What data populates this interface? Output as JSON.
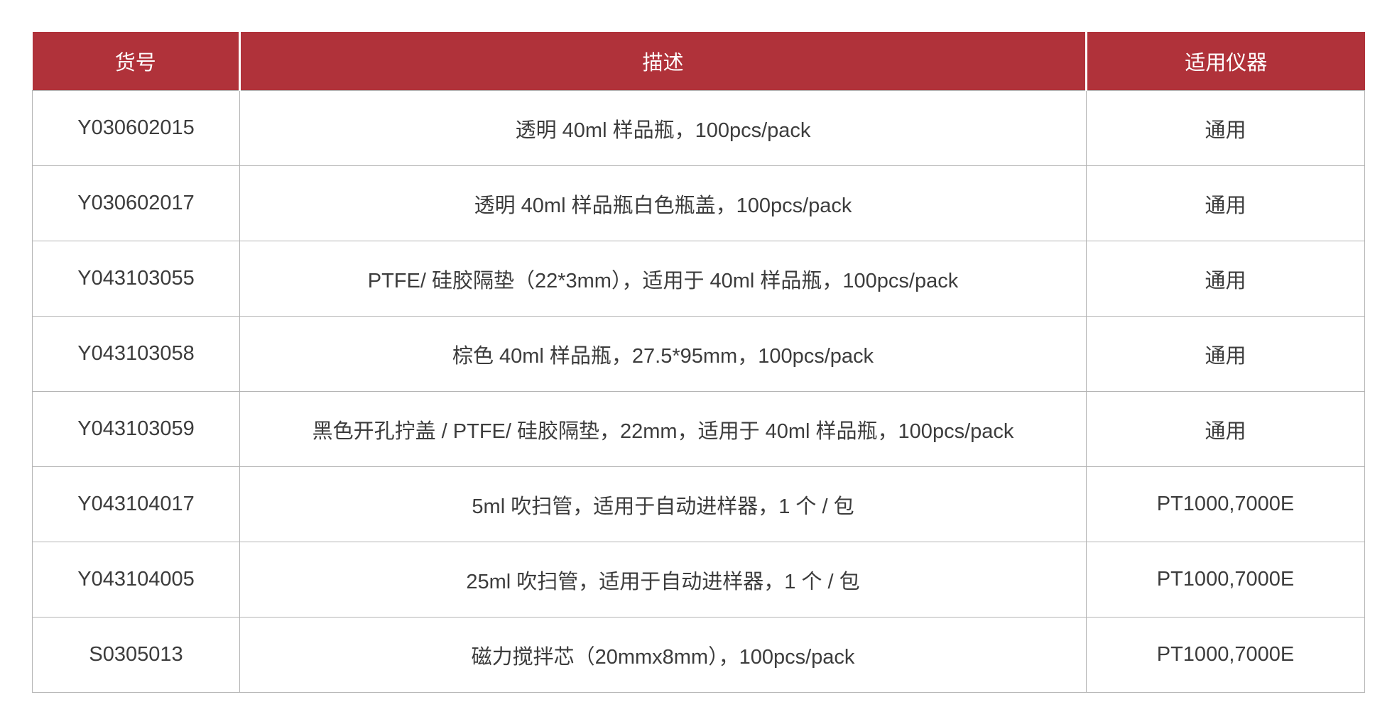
{
  "header_color": "#b0323a",
  "columns": [
    "货号",
    "描述",
    "适用仪器"
  ],
  "rows": [
    [
      "Y030602015",
      "透明 40ml 样品瓶，100pcs/pack",
      "通用"
    ],
    [
      "Y030602017",
      "透明 40ml 样品瓶白色瓶盖，100pcs/pack",
      "通用"
    ],
    [
      "Y043103055",
      "PTFE/ 硅胶隔垫（22*3mm），适用于 40ml 样品瓶，100pcs/pack",
      "通用"
    ],
    [
      "Y043103058",
      "棕色 40ml 样品瓶，27.5*95mm，100pcs/pack",
      "通用"
    ],
    [
      "Y043103059",
      "黑色开孔拧盖 / PTFE/ 硅胶隔垫，22mm，适用于 40ml 样品瓶，100pcs/pack",
      "通用"
    ],
    [
      "Y043104017",
      "5ml 吹扫管，适用于自动进样器，1 个 / 包",
      "PT1000,7000E"
    ],
    [
      "Y043104005",
      "25ml 吹扫管，适用于自动进样器，1 个 / 包",
      "PT1000,7000E"
    ],
    [
      "S0305013",
      "磁力搅拌芯（20mmx8mm），100pcs/pack",
      "PT1000,7000E"
    ]
  ]
}
